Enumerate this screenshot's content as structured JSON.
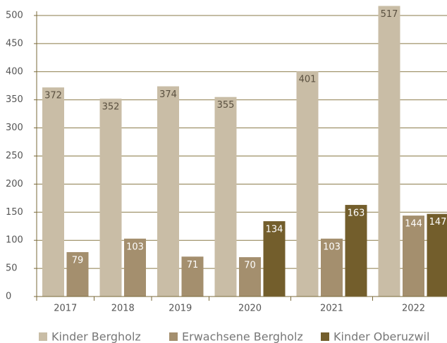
{
  "chart_data": {
    "type": "bar",
    "categories": [
      "2017",
      "2018",
      "2019",
      "2020",
      "2021",
      "2022"
    ],
    "series": [
      {
        "name": "Kinder Bergholz",
        "color": "#c9bda6",
        "values": [
          372,
          352,
          374,
          355,
          401,
          517
        ]
      },
      {
        "name": "Erwachsene Bergholz",
        "color": "#a48f6e",
        "values": [
          79,
          103,
          71,
          70,
          103,
          144
        ]
      },
      {
        "name": "Kinder Oberuzwil",
        "color": "#735e2c",
        "values": [
          null,
          null,
          null,
          134,
          163,
          147
        ]
      }
    ],
    "ylim": [
      0,
      500
    ],
    "yticks": [
      0,
      50,
      100,
      150,
      200,
      250,
      300,
      350,
      400,
      450,
      500
    ],
    "grid": true,
    "legend": "bottom"
  }
}
